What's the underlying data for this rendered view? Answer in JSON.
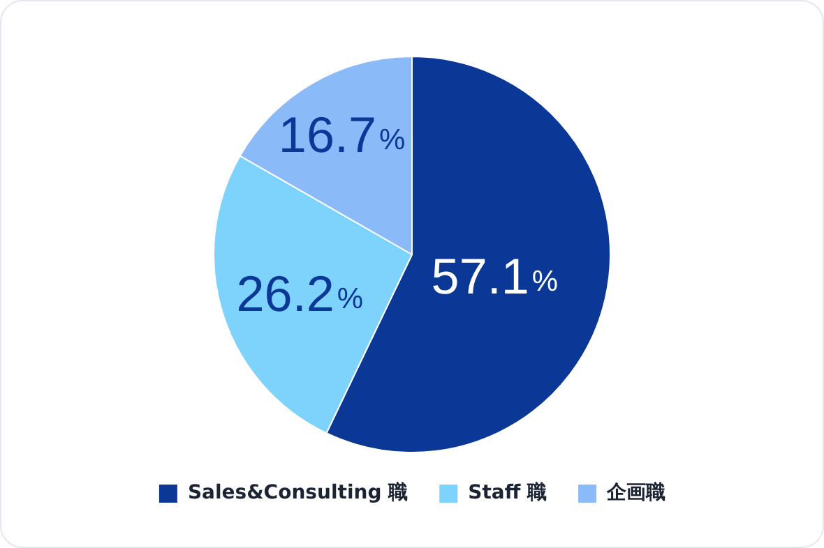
{
  "chart_data": {
    "type": "pie",
    "categories": [
      "Sales&Consulting 職",
      "Staff 職",
      "企画職"
    ],
    "values": [
      57.1,
      26.2,
      16.7
    ],
    "colors": [
      "#0b3797",
      "#7dd3fb",
      "#8bbaf9"
    ],
    "value_labels": [
      "57.1%",
      "26.2%",
      "16.7%"
    ],
    "legend": "bottom"
  }
}
